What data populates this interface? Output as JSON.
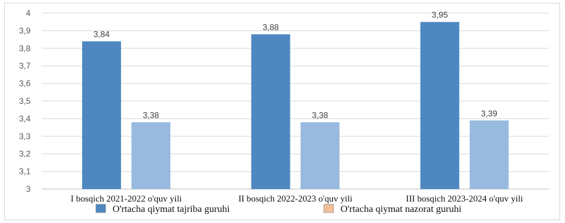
{
  "chart_data": {
    "type": "bar",
    "categories": [
      "I bosqich 2021-2022 o'quv yili",
      "II bosqich 2022-2023 o'quv yili",
      "III  bosqich 2023-2024 o'quv yili"
    ],
    "series": [
      {
        "name": "O'rtacha qiymat tajriba guruhi",
        "values": [
          3.84,
          3.88,
          3.95
        ],
        "labels": [
          "3,84",
          "3,88",
          "3,95"
        ],
        "color": "#4f88c0"
      },
      {
        "name": "O'rtacha qiymat nazorat guruhi",
        "values": [
          3.38,
          3.38,
          3.39
        ],
        "labels": [
          "3,38",
          "3,38",
          "3,39"
        ],
        "color": "#97bade",
        "legend_color": "#f4bf98"
      }
    ],
    "ylim": [
      3,
      4
    ],
    "yticks": [
      3,
      3.1,
      3.2,
      3.3,
      3.4,
      3.5,
      3.6,
      3.7,
      3.8,
      3.9,
      4
    ],
    "ytick_labels": [
      "3",
      "3,1",
      "3,2",
      "3,3",
      "3,4",
      "3,5",
      "3,6",
      "3,7",
      "3,8",
      "3,9",
      "4"
    ],
    "title": "",
    "xlabel": "",
    "ylabel": "",
    "grid": true,
    "legend": "bottom"
  }
}
